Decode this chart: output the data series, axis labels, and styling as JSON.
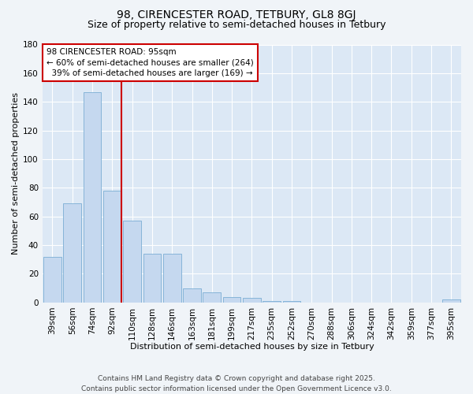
{
  "title_line1": "98, CIRENCESTER ROAD, TETBURY, GL8 8GJ",
  "title_line2": "Size of property relative to semi-detached houses in Tetbury",
  "xlabel": "Distribution of semi-detached houses by size in Tetbury",
  "ylabel": "Number of semi-detached properties",
  "categories": [
    "39sqm",
    "56sqm",
    "74sqm",
    "92sqm",
    "110sqm",
    "128sqm",
    "146sqm",
    "163sqm",
    "181sqm",
    "199sqm",
    "217sqm",
    "235sqm",
    "252sqm",
    "270sqm",
    "288sqm",
    "306sqm",
    "324sqm",
    "342sqm",
    "359sqm",
    "377sqm",
    "395sqm"
  ],
  "values": [
    32,
    69,
    147,
    78,
    57,
    34,
    34,
    10,
    7,
    4,
    3,
    1,
    1,
    0,
    0,
    0,
    0,
    0,
    0,
    0,
    2
  ],
  "bar_color": "#c5d8ef",
  "bar_edge_color": "#7aadd4",
  "vline_x_index": 3,
  "vline_color": "#cc0000",
  "annotation_title": "98 CIRENCESTER ROAD: 95sqm",
  "annotation_line2": "← 60% of semi-detached houses are smaller (264)",
  "annotation_line3": "  39% of semi-detached houses are larger (169) →",
  "annotation_box_facecolor": "#ffffff",
  "annotation_box_edgecolor": "#cc0000",
  "ylim": [
    0,
    180
  ],
  "yticks": [
    0,
    20,
    40,
    60,
    80,
    100,
    120,
    140,
    160,
    180
  ],
  "bg_color": "#f0f4f8",
  "plot_bg_color": "#dce8f5",
  "grid_color": "#ffffff",
  "footer": "Contains HM Land Registry data © Crown copyright and database right 2025.\nContains public sector information licensed under the Open Government Licence v3.0.",
  "title_fontsize": 10,
  "subtitle_fontsize": 9,
  "axis_label_fontsize": 8,
  "tick_fontsize": 7.5,
  "annotation_fontsize": 7.5,
  "footer_fontsize": 6.5
}
